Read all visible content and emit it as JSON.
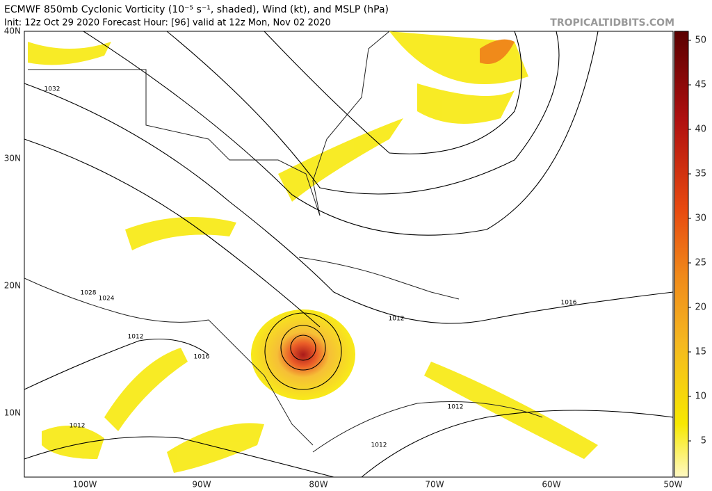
{
  "header": {
    "title": "ECMWF 850mb Cyclonic Vorticity (10⁻⁵ s⁻¹, shaded), Wind (kt), and MSLP (hPa)",
    "subtitle": "Init: 12z Oct 29 2020   Forecast Hour: [96]   valid at 12z Mon, Nov 02 2020",
    "site": "TROPICALTIDBITS.COM"
  },
  "map": {
    "lat_labels": [
      "40N",
      "30N",
      "20N",
      "10N"
    ],
    "lon_labels": [
      "100W",
      "90W",
      "80W",
      "70W",
      "60W",
      "50W"
    ],
    "isobar_labels": [
      "1032",
      "1028",
      "1024",
      "1012",
      "1016",
      "1012",
      "1016",
      "1012",
      "1012",
      "1012"
    ]
  },
  "colorbar": {
    "ticks": [
      "50",
      "45",
      "40",
      "35",
      "30",
      "25",
      "20",
      "15",
      "10",
      "5"
    ]
  }
}
